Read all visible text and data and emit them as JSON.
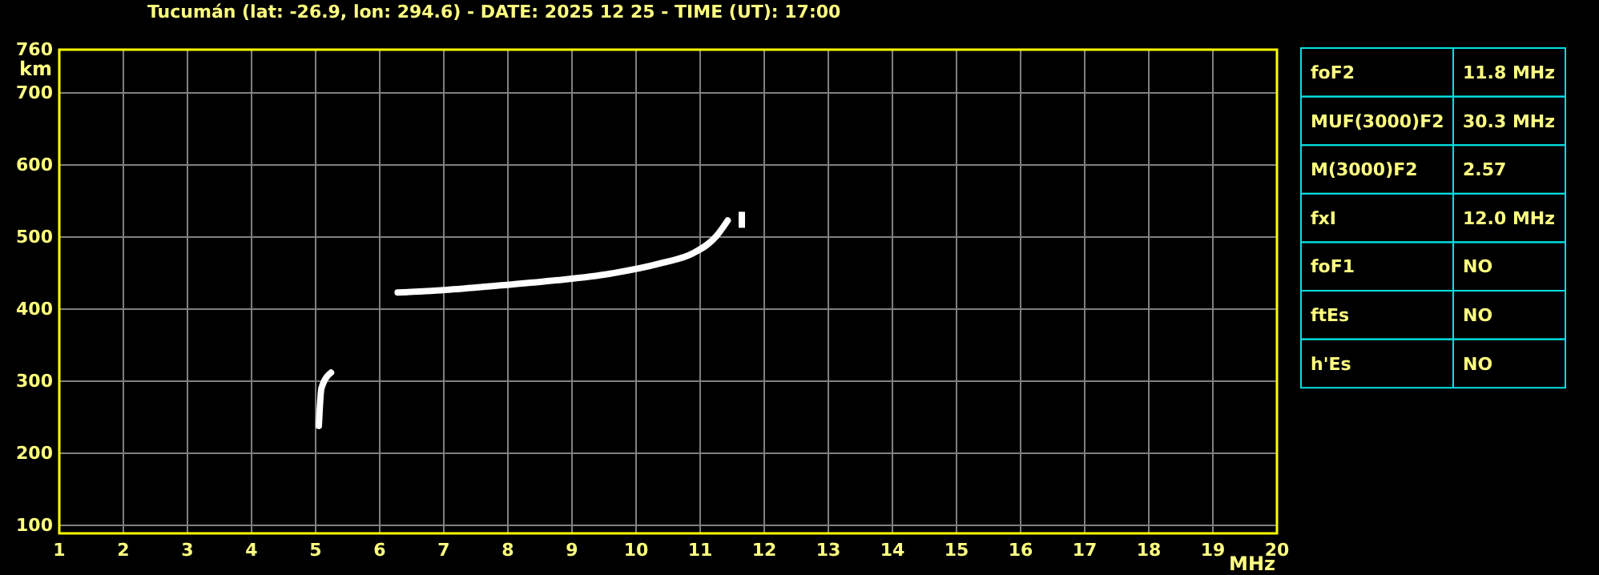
{
  "chart_data": [
    {
      "type": "line",
      "title": "Tucumán (lat: -26.9, lon: 294.6) - DATE: 2025 12 25 - TIME (UT): 17:00",
      "xlabel": "MHz",
      "ylabel": "km",
      "xlim": [
        1,
        20
      ],
      "ylim": [
        89,
        760
      ],
      "xticks": [
        1,
        2,
        3,
        4,
        5,
        6,
        7,
        8,
        9,
        10,
        11,
        12,
        13,
        14,
        15,
        16,
        17,
        18,
        19,
        20
      ],
      "yticks": [
        100,
        200,
        300,
        400,
        500,
        600,
        700,
        760
      ],
      "grid": true,
      "marker": "none",
      "line_style": "solid",
      "series": [
        {
          "color": "#ffffff",
          "x": [
            6.28,
            7.08,
            7.9,
            8.75,
            9.58,
            10.4,
            10.9,
            11.25,
            11.43
          ],
          "values": [
            423,
            427,
            433,
            440,
            449,
            464,
            478,
            501,
            523
          ]
        },
        {
          "color": "#ffffff",
          "x": [
            5.05,
            5.09,
            5.24
          ],
          "values": [
            238,
            290,
            312
          ]
        },
        {
          "type": "scatter",
          "marker": "square",
          "color": "#ffffff",
          "x": [
            11.65
          ],
          "values": [
            524
          ]
        }
      ]
    },
    {
      "type": "other",
      "categories": [
        "foF2",
        "MUF(3000)F2",
        "M(3000)F2",
        "fxI",
        "foF1",
        "ftEs",
        "h'Es"
      ],
      "value_labels": [
        "11.8 MHz",
        "30.3 MHz",
        "2.57",
        "12.0 MHz",
        "NO",
        "NO",
        "NO"
      ]
    }
  ]
}
